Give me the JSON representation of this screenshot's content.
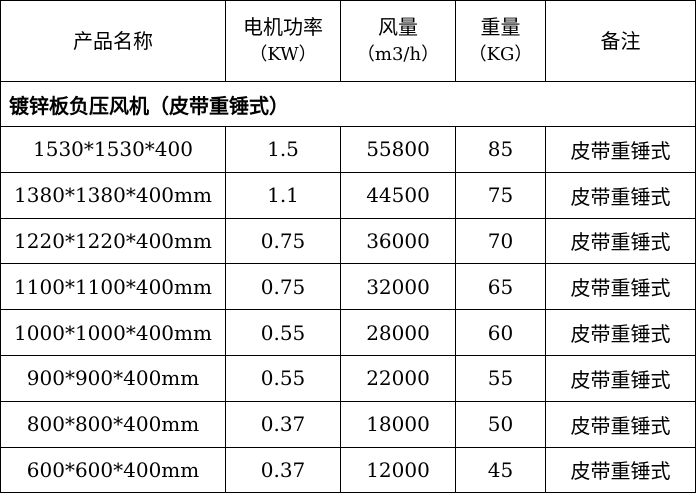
{
  "table": {
    "header": [
      {
        "title": "产品名称"
      },
      {
        "title": "电机功率",
        "unit": "（KW）"
      },
      {
        "title": "风量",
        "unit": "（m3/h）"
      },
      {
        "title": "重量",
        "unit": "（KG）"
      },
      {
        "title": "备注"
      }
    ],
    "section": "镀锌板负压风机（皮带重锤式）",
    "rows": [
      [
        "1530*1530*400",
        "1.5",
        "55800",
        "85",
        "皮带重锤式"
      ],
      [
        "1380*1380*400mm",
        "1.1",
        "44500",
        "75",
        "皮带重锤式"
      ],
      [
        "1220*1220*400mm",
        "0.75",
        "36000",
        "70",
        "皮带重锤式"
      ],
      [
        "1100*1100*400mm",
        "0.75",
        "32000",
        "65",
        "皮带重锤式"
      ],
      [
        "1000*1000*400mm",
        "0.55",
        "28000",
        "60",
        "皮带重锤式"
      ],
      [
        "900*900*400mm",
        "0.55",
        "22000",
        "55",
        "皮带重锤式"
      ],
      [
        "800*800*400mm",
        "0.37",
        "18000",
        "50",
        "皮带重锤式"
      ],
      [
        "600*600*400mm",
        "0.37",
        "12000",
        "45",
        "皮带重锤式"
      ]
    ]
  }
}
